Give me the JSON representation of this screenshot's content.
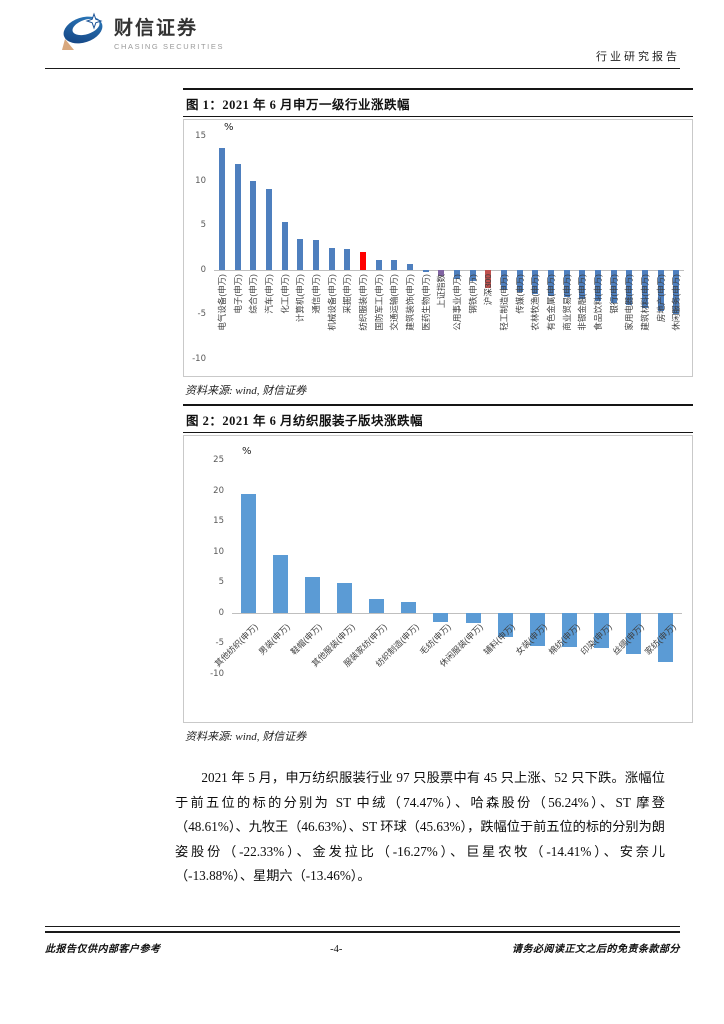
{
  "header": {
    "brand_cn": "财信证券",
    "brand_en": "CHASING SECURITIES",
    "doc_type": "行业研究报告"
  },
  "figures": [
    {
      "title": "图 1：2021 年 6 月申万一级行业涨跌幅",
      "source": "资料来源: wind, 财信证券"
    },
    {
      "title": "图 2：2021 年 6 月纺织服装子版块涨跌幅",
      "source": "资料来源: wind, 财信证券"
    }
  ],
  "chart_data": [
    {
      "type": "bar",
      "title": "2021 年 6 月申万一级行业涨跌幅",
      "unit": "%",
      "ylim": [
        -10,
        15
      ],
      "yticks": [
        15,
        10,
        5,
        0,
        -5,
        -10
      ],
      "grid": false,
      "legend": "none",
      "label_rotation": 90,
      "default_color": "#4E7FBE",
      "categories": [
        "电气设备(申万)",
        "电子(申万)",
        "综合(申万)",
        "汽车(申万)",
        "化工(申万)",
        "计算机(申万)",
        "通信(申万)",
        "机械设备(申万)",
        "采掘(申万)",
        "纺织服装(申万)",
        "国防军工(申万)",
        "交通运输(申万)",
        "建筑装饰(申万)",
        "医药生物(申万)",
        "上证指数",
        "公用事业(申万)",
        "钢铁(申万)",
        "沪深300",
        "轻工制造(申万)",
        "传媒(申万)",
        "农林牧渔(申万)",
        "有色金属(申万)",
        "商业贸易(申万)",
        "非银金融(申万)",
        "食品饮料(申万)",
        "银行(申万)",
        "家用电器(申万)",
        "建筑材料(申万)",
        "房地产(申万)",
        "休闲服务(申万)"
      ],
      "values": [
        13.6,
        11.9,
        9.9,
        9.1,
        5.4,
        3.5,
        3.3,
        2.4,
        2.3,
        2.0,
        1.1,
        1.1,
        0.6,
        -0.2,
        -0.7,
        -1.0,
        -1.2,
        -2.0,
        -2.3,
        -2.5,
        -2.7,
        -2.9,
        -3.1,
        -3.3,
        -3.5,
        -3.7,
        -4.0,
        -4.3,
        -4.6,
        -5.0
      ],
      "colors": [
        null,
        null,
        null,
        null,
        null,
        null,
        null,
        null,
        null,
        "#FF0000",
        null,
        null,
        null,
        null,
        "#8064A2",
        null,
        null,
        "#C0504D",
        null,
        null,
        null,
        null,
        null,
        null,
        null,
        null,
        null,
        null,
        null,
        null
      ]
    },
    {
      "type": "bar",
      "title": "2021 年 6 月纺织服装子版块涨跌幅",
      "unit": "%",
      "ylim": [
        -10,
        25
      ],
      "yticks": [
        25,
        20,
        15,
        10,
        5,
        0,
        -5,
        -10
      ],
      "grid": false,
      "legend": "none",
      "label_rotation": 45,
      "default_color": "#5B9BD5",
      "categories": [
        "其他纺织(申万)",
        "男装(申万)",
        "鞋帽(申万)",
        "其他服装(申万)",
        "服装家纺(申万)",
        "纺织制造(申万)",
        "毛纺(申万)",
        "休闲服装(申万)",
        "辅料(申万)",
        "女装(申万)",
        "棉纺(申万)",
        "印染(申万)",
        "丝绸(申万)",
        "家纺(申万)"
      ],
      "values": [
        19.5,
        9.4,
        5.8,
        4.9,
        2.2,
        1.7,
        -1.5,
        -1.6,
        -4.0,
        -5.5,
        -5.6,
        -5.7,
        -6.8,
        -8.0
      ],
      "colors": [
        null,
        null,
        null,
        null,
        null,
        null,
        null,
        null,
        null,
        null,
        null,
        null,
        null,
        null
      ]
    }
  ],
  "paragraph": "2021 年 5 月，申万纺织服装行业 97 只股票中有 45 只上涨、52 只下跌。涨幅位于前五位的标的分别为 ST 中绒（74.47%）、哈森股份（56.24%）、ST 摩登（48.61%）、九牧王（46.63%）、ST 环球（45.63%），跌幅位于前五位的标的分别为朗姿股份（-22.33%）、金发拉比（-16.27%）、巨星农牧（-14.41%）、安奈儿（-13.88%）、星期六（-13.46%）。",
  "footer": {
    "left": "此报告仅供内部客户参考",
    "page_number": "-4-",
    "right": "请务必阅读正文之后的免责条款部分"
  }
}
